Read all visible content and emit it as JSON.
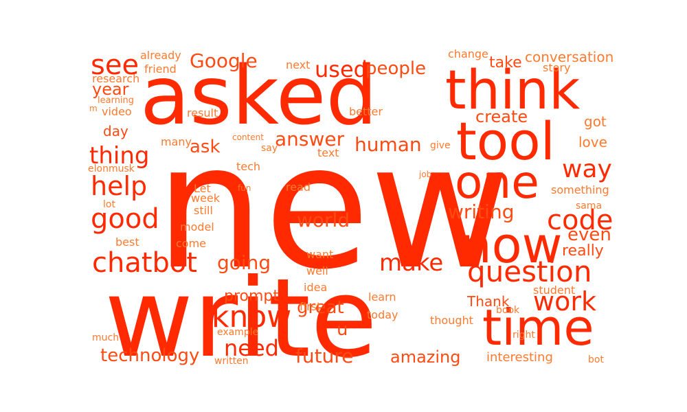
{
  "colors": {
    "strong": "#ff2a00",
    "mid": "#ff4a12",
    "light": "#ff7a2e"
  },
  "words": [
    {
      "text": "new",
      "weight": 1.0
    },
    {
      "text": "write",
      "weight": 0.8
    },
    {
      "text": "asked",
      "weight": 0.65
    },
    {
      "text": "think",
      "weight": 0.42
    },
    {
      "text": "tool",
      "weight": 0.4
    },
    {
      "text": "time",
      "weight": 0.37
    },
    {
      "text": "now",
      "weight": 0.36
    },
    {
      "text": "one",
      "weight": 0.34
    },
    {
      "text": "question",
      "weight": 0.23
    },
    {
      "text": "know",
      "weight": 0.22
    },
    {
      "text": "chatbot",
      "weight": 0.2
    },
    {
      "text": "code",
      "weight": 0.2
    },
    {
      "text": "good",
      "weight": 0.2
    },
    {
      "text": "see",
      "weight": 0.19
    },
    {
      "text": "help",
      "weight": 0.18
    },
    {
      "text": "work",
      "weight": 0.18
    },
    {
      "text": "make",
      "weight": 0.16
    },
    {
      "text": "way",
      "weight": 0.16
    },
    {
      "text": "thing",
      "weight": 0.16
    },
    {
      "text": "used",
      "weight": 0.15
    },
    {
      "text": "need",
      "weight": 0.15
    },
    {
      "text": "Google",
      "weight": 0.14
    },
    {
      "text": "answer",
      "weight": 0.14
    },
    {
      "text": "human",
      "weight": 0.13
    },
    {
      "text": "going",
      "weight": 0.13
    },
    {
      "text": "writing",
      "weight": 0.13
    },
    {
      "text": "world",
      "weight": 0.12
    },
    {
      "text": "future",
      "weight": 0.12
    },
    {
      "text": "people",
      "weight": 0.12
    },
    {
      "text": "technology",
      "weight": 0.12
    },
    {
      "text": "even",
      "weight": 0.11
    },
    {
      "text": "great",
      "weight": 0.11
    },
    {
      "text": "create",
      "weight": 0.11
    },
    {
      "text": "amazing",
      "weight": 0.11
    },
    {
      "text": "ask",
      "weight": 0.11
    },
    {
      "text": "year",
      "weight": 0.11
    },
    {
      "text": "u",
      "weight": 0.11
    },
    {
      "text": "take",
      "weight": 0.1
    },
    {
      "text": "really",
      "weight": 0.1
    },
    {
      "text": "conversation",
      "weight": 0.1
    },
    {
      "text": "prompt",
      "weight": 0.09
    },
    {
      "text": "Thank",
      "weight": 0.09
    },
    {
      "text": "day",
      "weight": 0.09
    },
    {
      "text": "love",
      "weight": 0.08
    },
    {
      "text": "got",
      "weight": 0.08
    },
    {
      "text": "interesting",
      "weight": 0.08
    },
    {
      "text": "better",
      "weight": 0.07
    },
    {
      "text": "today",
      "weight": 0.07
    },
    {
      "text": "story",
      "weight": 0.07
    },
    {
      "text": "thought",
      "weight": 0.07
    },
    {
      "text": "idea",
      "weight": 0.07
    },
    {
      "text": "student",
      "weight": 0.07
    },
    {
      "text": "result",
      "weight": 0.07
    },
    {
      "text": "already",
      "weight": 0.07
    },
    {
      "text": "tech",
      "weight": 0.07
    },
    {
      "text": "friend",
      "weight": 0.07
    },
    {
      "text": "model",
      "weight": 0.07
    },
    {
      "text": "research",
      "weight": 0.06
    },
    {
      "text": "video",
      "weight": 0.06
    },
    {
      "text": "many",
      "weight": 0.06
    },
    {
      "text": "read",
      "weight": 0.06
    },
    {
      "text": "first",
      "weight": 0.06
    },
    {
      "text": "text",
      "weight": 0.06
    },
    {
      "text": "come",
      "weight": 0.06
    },
    {
      "text": "best",
      "weight": 0.06
    },
    {
      "text": "change",
      "weight": 0.06
    },
    {
      "text": "something",
      "weight": 0.06
    },
    {
      "text": "next",
      "weight": 0.06
    },
    {
      "text": "want",
      "weight": 0.06
    },
    {
      "text": "well",
      "weight": 0.06
    },
    {
      "text": "learn",
      "weight": 0.06
    },
    {
      "text": "Let",
      "weight": 0.06
    },
    {
      "text": "still",
      "weight": 0.06
    },
    {
      "text": "week",
      "weight": 0.06
    },
    {
      "text": "example",
      "weight": 0.06
    },
    {
      "text": "written",
      "weight": 0.06
    },
    {
      "text": "much",
      "weight": 0.05
    },
    {
      "text": "lot",
      "weight": 0.05
    },
    {
      "text": "elonmusk",
      "weight": 0.05
    },
    {
      "text": "sama",
      "weight": 0.05
    },
    {
      "text": "bot",
      "weight": 0.05
    },
    {
      "text": "give",
      "weight": 0.05
    },
    {
      "text": "say",
      "weight": 0.05
    },
    {
      "text": "right",
      "weight": 0.05
    },
    {
      "text": "book",
      "weight": 0.05
    },
    {
      "text": "learning",
      "weight": 0.04
    },
    {
      "text": "content",
      "weight": 0.04
    },
    {
      "text": "fun",
      "weight": 0.04
    },
    {
      "text": "job",
      "weight": 0.04
    },
    {
      "text": "m",
      "weight": 0.04
    }
  ]
}
